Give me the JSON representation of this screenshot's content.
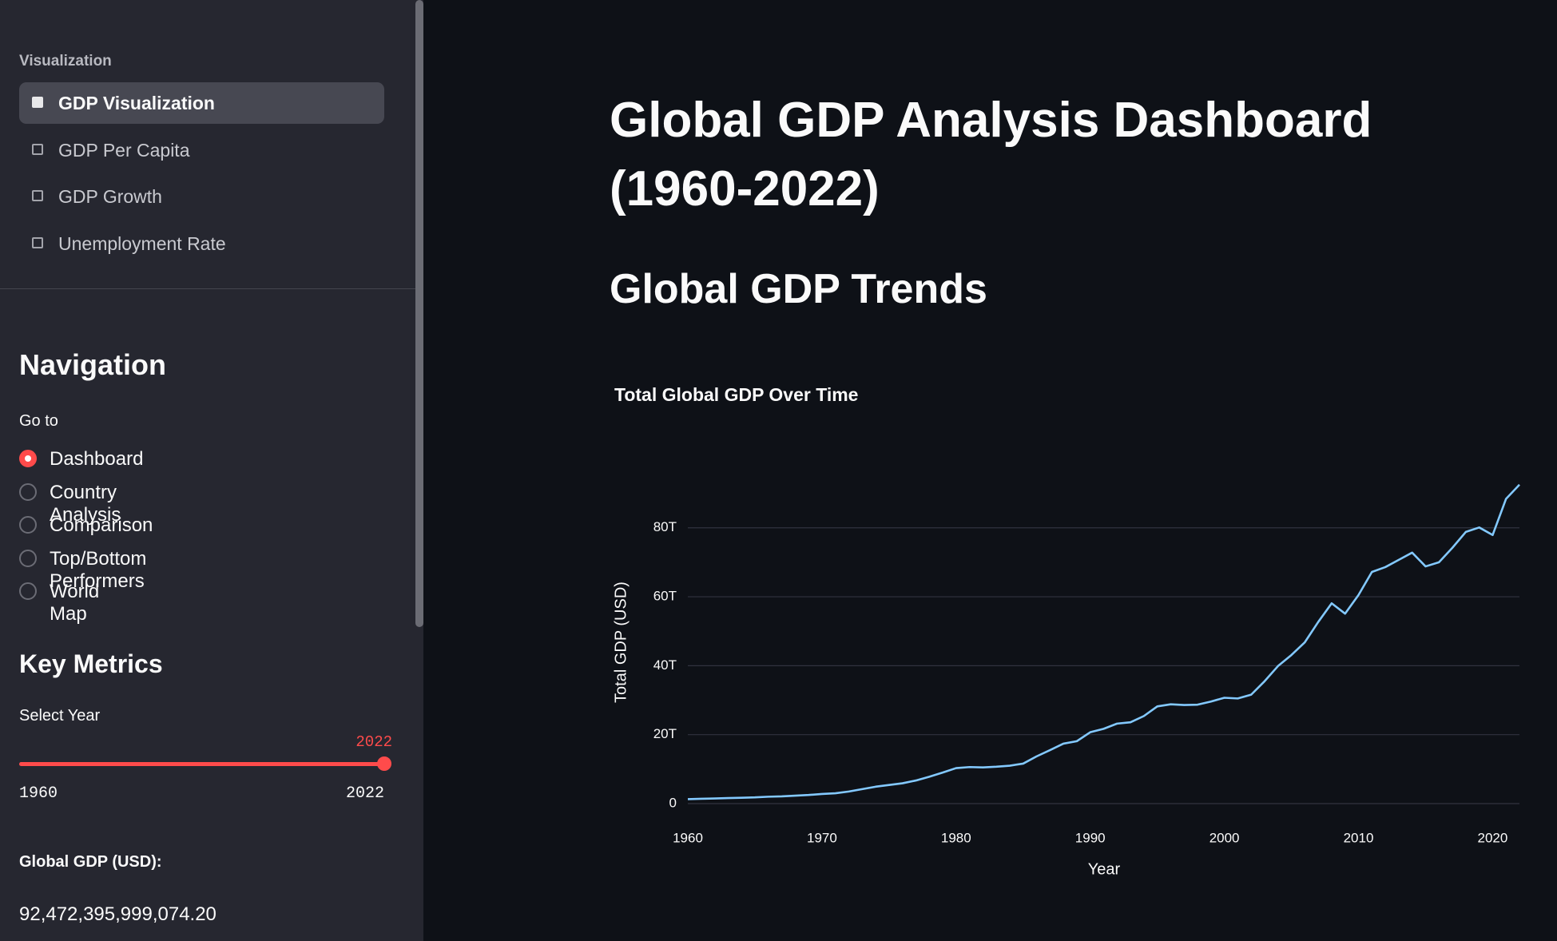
{
  "sidebar": {
    "menu_title": "Visualization",
    "menu_items": [
      "GDP Visualization",
      "GDP Per Capita",
      "GDP Growth",
      "Unemployment Rate"
    ],
    "menu_selected": 0,
    "navigation": {
      "title": "Navigation",
      "label": "Go to",
      "options": [
        "Dashboard",
        "Country Analysis",
        "Comparison",
        "Top/Bottom Performers",
        "World Map"
      ],
      "selected": 0
    },
    "key_metrics": {
      "title": "Key Metrics",
      "slider_label": "Select Year",
      "slider": {
        "min": 1960,
        "max": 2022,
        "value": 2022
      },
      "metric_label": "Global GDP (USD):",
      "metric_value": "92,472,395,999,074.20"
    }
  },
  "main": {
    "title": "Global GDP Analysis Dashboard (1960-2022)",
    "subtitle": "Global GDP Trends"
  },
  "chart_data": {
    "type": "line",
    "title": "Total Global GDP Over Time",
    "x_label": "Year",
    "y_label": "Total GDP (USD)",
    "color": "#83c9ff",
    "grid": true,
    "x": [
      1960,
      1961,
      1962,
      1963,
      1964,
      1965,
      1966,
      1967,
      1968,
      1969,
      1970,
      1971,
      1972,
      1973,
      1974,
      1975,
      1976,
      1977,
      1978,
      1979,
      1980,
      1981,
      1982,
      1983,
      1984,
      1985,
      1986,
      1987,
      1988,
      1989,
      1990,
      1991,
      1992,
      1993,
      1994,
      1995,
      1996,
      1997,
      1998,
      1999,
      2000,
      2001,
      2002,
      2003,
      2004,
      2005,
      2006,
      2007,
      2008,
      2009,
      2010,
      2011,
      2012,
      2013,
      2014,
      2015,
      2016,
      2017,
      2018,
      2019,
      2020,
      2021,
      2022
    ],
    "values": [
      1300000000000.0,
      1400000000000.0,
      1500000000000.0,
      1600000000000.0,
      1700000000000.0,
      1800000000000.0,
      2000000000000.0,
      2100000000000.0,
      2300000000000.0,
      2500000000000.0,
      2800000000000.0,
      3000000000000.0,
      3500000000000.0,
      4200000000000.0,
      4900000000000.0,
      5400000000000.0,
      5900000000000.0,
      6700000000000.0,
      7800000000000.0,
      9000000000000.0,
      10300000000000.0,
      10600000000000.0,
      10500000000000.0,
      10700000000000.0,
      11000000000000.0,
      11600000000000.0,
      13700000000000.0,
      15500000000000.0,
      17400000000000.0,
      18100000000000.0,
      20700000000000.0,
      21700000000000.0,
      23200000000000.0,
      23600000000000.0,
      25400000000000.0,
      28200000000000.0,
      28800000000000.0,
      28600000000000.0,
      28700000000000.0,
      29600000000000.0,
      30700000000000.0,
      30500000000000.0,
      31600000000000.0,
      35500000000000.0,
      39900000000000.0,
      43100000000000.0,
      46800000000000.0,
      52700000000000.0,
      58100000000000.0,
      55100000000000.0,
      60500000000000.0,
      67200000000000.0,
      68600000000000.0,
      70700000000000.0,
      72800000000000.0,
      68800000000000.0,
      70000000000000.0,
      74200000000000.0,
      78800000000000.0,
      80100000000000.0,
      77900000000000.0,
      88400000000000.0,
      92500000000000.0
    ],
    "xlim": [
      1960,
      2022
    ],
    "xticks": [
      1960,
      1970,
      1980,
      1990,
      2000,
      2010,
      2020
    ],
    "ylim": [
      0,
      95000000000000.0
    ],
    "yticks": [
      0,
      {
        "value": 20000000000000.0,
        "label": "20T"
      },
      {
        "value": 40000000000000.0,
        "label": "40T"
      },
      {
        "value": 60000000000000.0,
        "label": "60T"
      },
      {
        "value": 80000000000000.0,
        "label": "80T"
      }
    ]
  }
}
